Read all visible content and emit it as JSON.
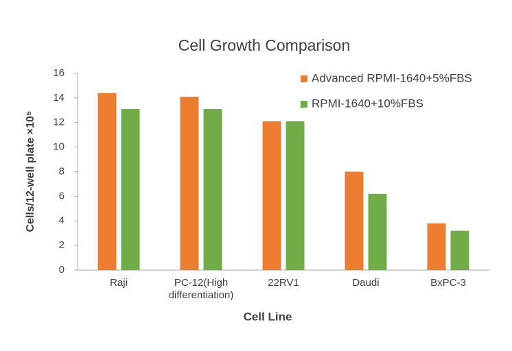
{
  "chart_data": {
    "type": "bar",
    "title": "Cell Growth Comparison",
    "x_label": "Cell Line",
    "y_label": "Cells/12-well plate ×10⁵",
    "categories": [
      "Raji",
      "PC-12(High differentiation)",
      "22RV1",
      "Daudi",
      "BxPC-3"
    ],
    "series": [
      {
        "name": "Advanced RPMI-1640+5%FBS",
        "color": "#ed7d31",
        "values": [
          14.4,
          14.1,
          12.1,
          8.0,
          3.8
        ]
      },
      {
        "name": "RPMI-1640+10%FBS",
        "color": "#70ad47",
        "values": [
          13.1,
          13.1,
          12.1,
          6.2,
          3.2
        ]
      }
    ],
    "ylim": [
      0,
      16
    ],
    "yticks": [
      0,
      2,
      4,
      6,
      8,
      10,
      12,
      14,
      16
    ],
    "grid": false,
    "legend": "top-right"
  }
}
